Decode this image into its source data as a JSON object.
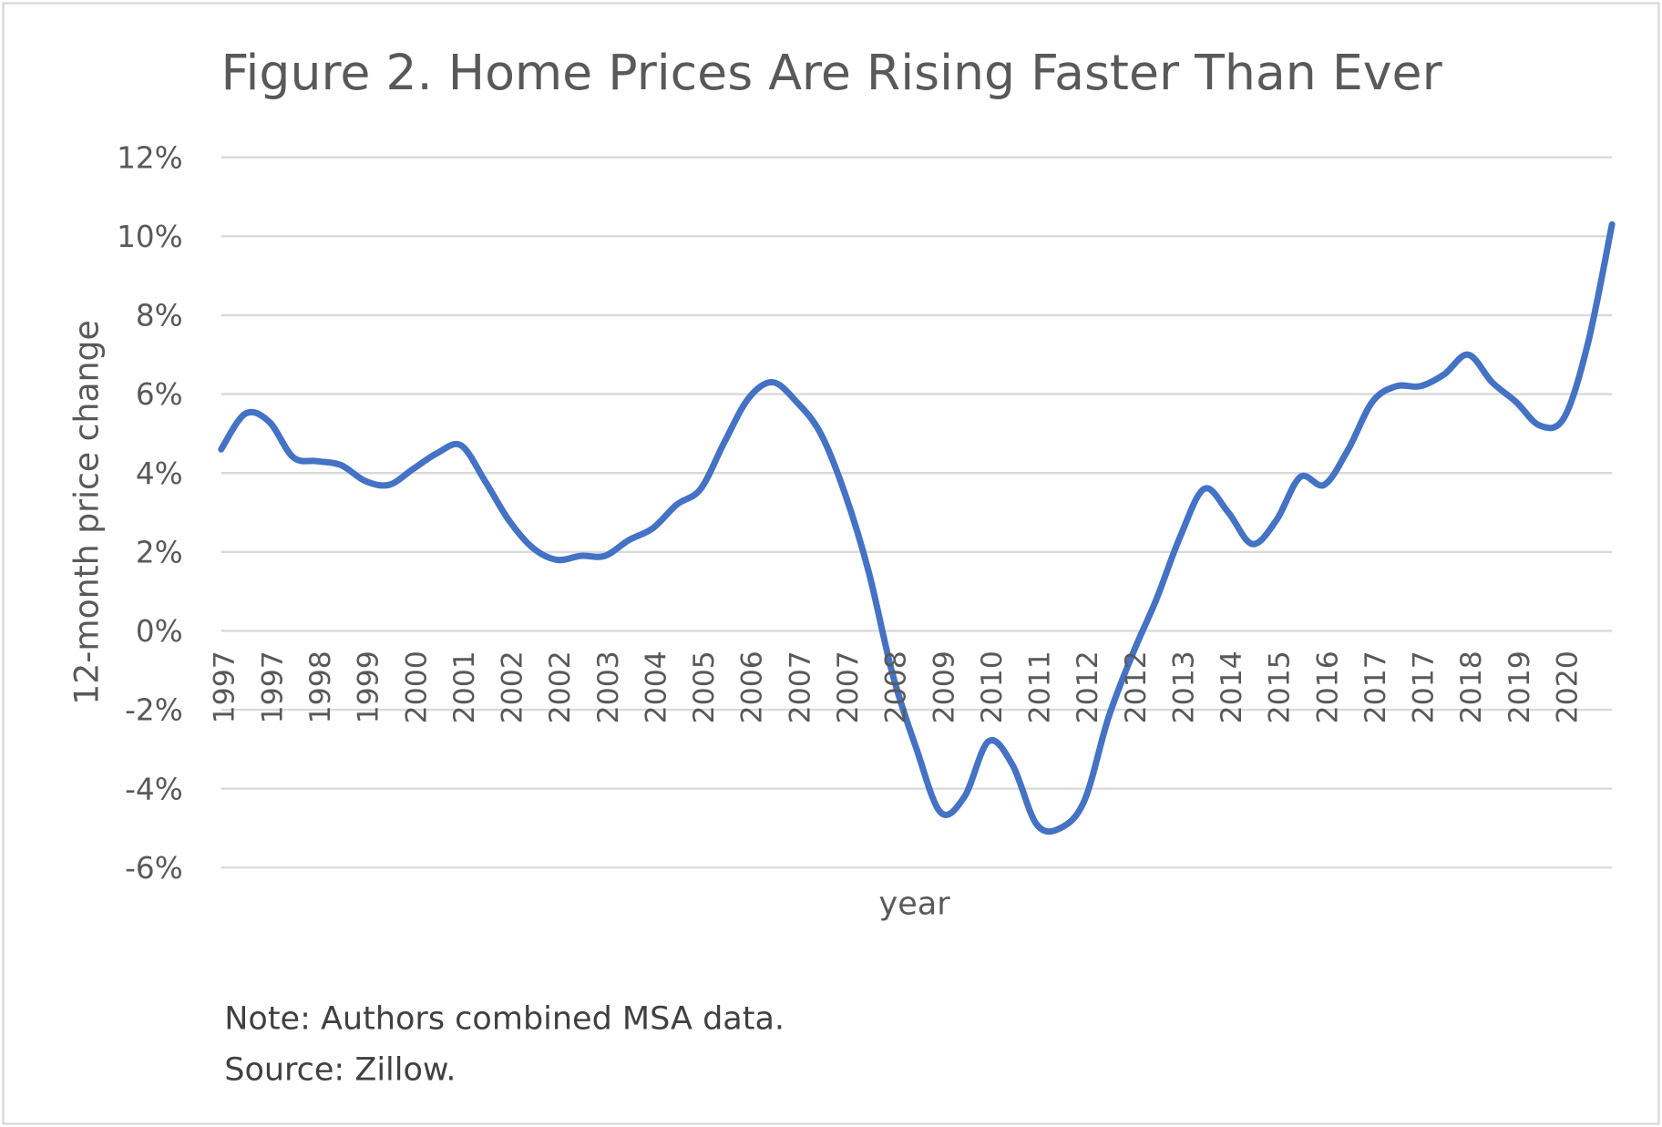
{
  "chart_data": {
    "type": "line",
    "title": "Figure 2. Home Prices Are Rising Faster Than Ever",
    "xlabel": "year",
    "ylabel": "12-month price change",
    "ylim": [
      -6,
      12
    ],
    "y_ticks": [
      "12%",
      "10%",
      "8%",
      "6%",
      "4%",
      "2%",
      "0%",
      "-2%",
      "-4%",
      "-6%"
    ],
    "y_tick_values": [
      12,
      10,
      8,
      6,
      4,
      2,
      0,
      -2,
      -4,
      -6
    ],
    "x_tick_labels": [
      "1997",
      "1997",
      "1998",
      "1999",
      "2000",
      "2001",
      "2002",
      "2002",
      "2003",
      "2004",
      "2005",
      "2006",
      "2007",
      "2007",
      "2008",
      "2009",
      "2010",
      "2011",
      "2012",
      "2012",
      "2013",
      "2014",
      "2015",
      "2016",
      "2017",
      "2017",
      "2018",
      "2019",
      "2020"
    ],
    "grid": "horizontal",
    "line_color": "#4472C4",
    "series": [
      {
        "values": [
          4.6,
          5.5,
          5.3,
          4.4,
          4.3,
          4.2,
          3.8,
          3.7,
          4.1,
          4.5,
          4.7,
          3.8,
          2.8,
          2.1,
          1.8,
          1.9,
          1.9,
          2.3,
          2.6,
          3.2,
          3.6,
          4.8,
          5.9,
          6.3,
          5.8,
          5.0,
          3.5,
          1.5,
          -1.1,
          -3.0,
          -4.6,
          -4.2,
          -2.8,
          -3.4,
          -4.9,
          -5.0,
          -4.3,
          -2.2,
          -0.6,
          0.8,
          2.4,
          3.6,
          3.0,
          2.2,
          2.8,
          3.9,
          3.7,
          4.6,
          5.8,
          6.2,
          6.2,
          6.5,
          7.0,
          6.3,
          5.8,
          5.2,
          5.4,
          7.3,
          10.3
        ]
      }
    ]
  },
  "notes": {
    "note": "Note: Authors combined MSA data.",
    "source": "Source: Zillow."
  }
}
